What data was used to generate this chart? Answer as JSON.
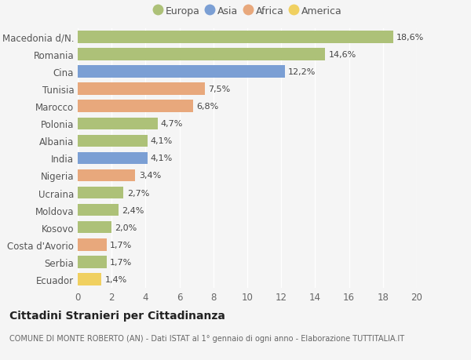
{
  "categories": [
    "Macedonia d/N.",
    "Romania",
    "Cina",
    "Tunisia",
    "Marocco",
    "Polonia",
    "Albania",
    "India",
    "Nigeria",
    "Ucraina",
    "Moldova",
    "Kosovo",
    "Costa d'Avorio",
    "Serbia",
    "Ecuador"
  ],
  "values": [
    18.6,
    14.6,
    12.2,
    7.5,
    6.8,
    4.7,
    4.1,
    4.1,
    3.4,
    2.7,
    2.4,
    2.0,
    1.7,
    1.7,
    1.4
  ],
  "labels": [
    "18,6%",
    "14,6%",
    "12,2%",
    "7,5%",
    "6,8%",
    "4,7%",
    "4,1%",
    "4,1%",
    "3,4%",
    "2,7%",
    "2,4%",
    "2,0%",
    "1,7%",
    "1,7%",
    "1,4%"
  ],
  "continents": [
    "Europa",
    "Europa",
    "Asia",
    "Africa",
    "Africa",
    "Europa",
    "Europa",
    "Asia",
    "Africa",
    "Europa",
    "Europa",
    "Europa",
    "Africa",
    "Europa",
    "America"
  ],
  "colors": {
    "Europa": "#adc178",
    "Asia": "#7b9fd4",
    "Africa": "#e8a87c",
    "America": "#f0d060"
  },
  "legend_order": [
    "Europa",
    "Asia",
    "Africa",
    "America"
  ],
  "xlim": [
    0,
    20
  ],
  "xticks": [
    0,
    2,
    4,
    6,
    8,
    10,
    12,
    14,
    16,
    18,
    20
  ],
  "background_color": "#f5f5f5",
  "plot_bg_color": "#f0f0f0",
  "title": "Cittadini Stranieri per Cittadinanza",
  "subtitle": "COMUNE DI MONTE ROBERTO (AN) - Dati ISTAT al 1° gennaio di ogni anno - Elaborazione TUTTITALIA.IT",
  "grid_color": "#ffffff",
  "bar_height": 0.7,
  "label_fontsize": 8,
  "ytick_fontsize": 8.5,
  "xtick_fontsize": 8.5,
  "title_fontsize": 10,
  "subtitle_fontsize": 7,
  "legend_fontsize": 9
}
